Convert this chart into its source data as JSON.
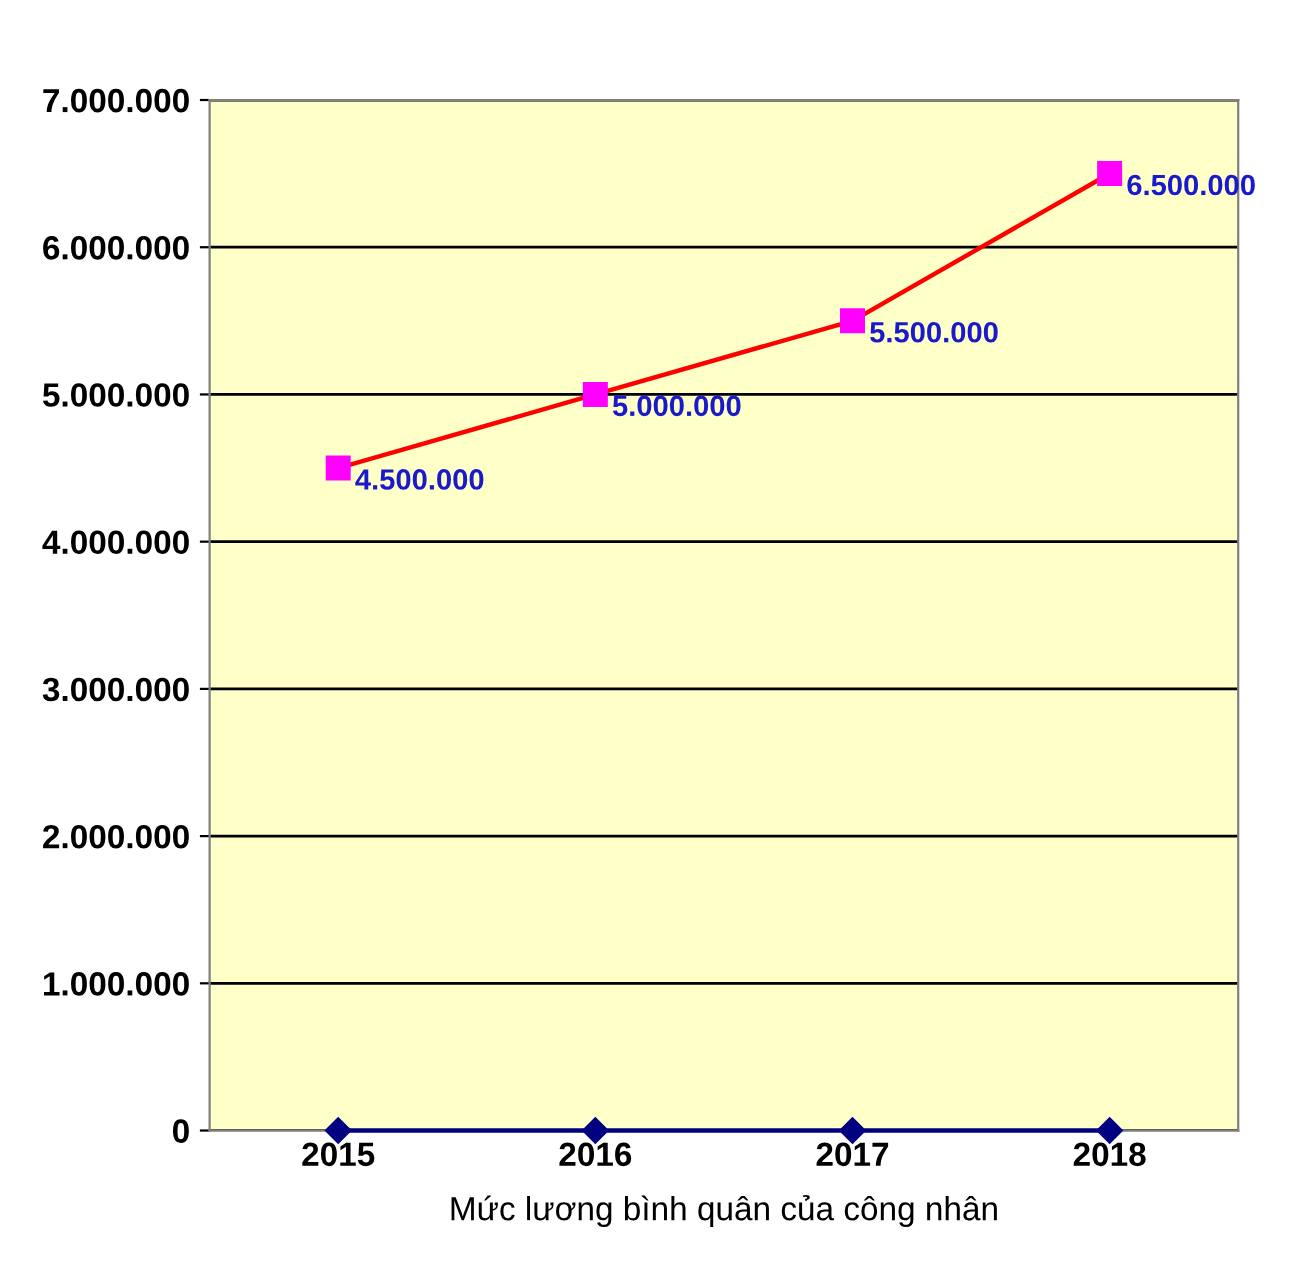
{
  "chart_data": {
    "type": "line",
    "xlabel": "Mức lương bình quân của công nhân",
    "categories": [
      "2015",
      "2016",
      "2017",
      "2018"
    ],
    "series": [
      {
        "color": "#ff0000",
        "colors": [
          "#ff00ff",
          "#ff00ff",
          "#ff00ff",
          "#ff00ff"
        ],
        "marker": "square",
        "values": [
          4500000,
          5000000,
          5500000,
          6500000
        ],
        "value_labels": [
          "4.500.000",
          "5.000.000",
          "5.500.000",
          "6.500.000"
        ]
      },
      {
        "color": "#000080",
        "marker": "diamond",
        "values": [
          0,
          0,
          0,
          0
        ]
      }
    ],
    "ylim": [
      0,
      7000000
    ],
    "yticks": [
      {
        "value": 0,
        "label": "0"
      },
      {
        "value": 1000000,
        "label": "1.000.000"
      },
      {
        "value": 2000000,
        "label": "2.000.000"
      },
      {
        "value": 3000000,
        "label": "3.000.000"
      },
      {
        "value": 4000000,
        "label": "4.000.000"
      },
      {
        "value": 5000000,
        "label": "5.000.000"
      },
      {
        "value": 6000000,
        "label": "6.000.000"
      },
      {
        "value": 7000000,
        "label": "7.000.000"
      }
    ],
    "grid": "y"
  }
}
